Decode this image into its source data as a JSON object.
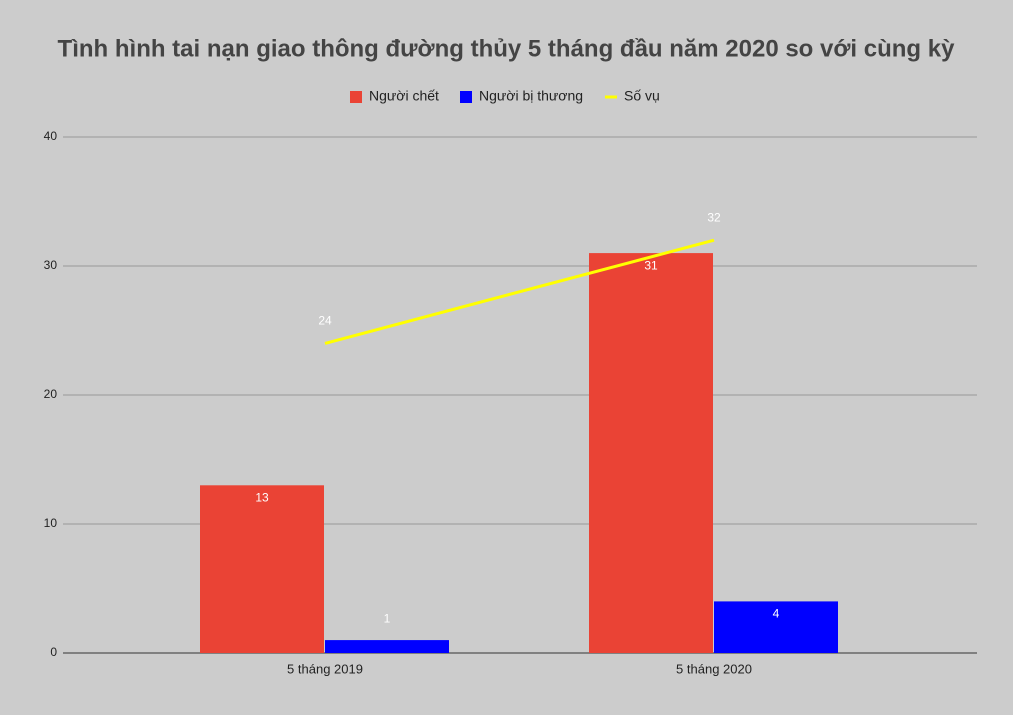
{
  "chart_data": {
    "type": "bar",
    "title": "Tình hình tai nạn giao thông đường thủy 5 tháng đầu năm 2020 so với cùng kỳ",
    "categories": [
      "5 tháng 2019",
      "5 tháng 2020"
    ],
    "series": [
      {
        "name": "Người chết",
        "color": "#ea4335",
        "type": "bar",
        "values": [
          13,
          31
        ]
      },
      {
        "name": "Người bị thương",
        "color": "#0000ff",
        "type": "bar",
        "values": [
          1,
          4
        ]
      },
      {
        "name": "Số vụ",
        "color": "#ffff00",
        "type": "line",
        "values": [
          24,
          32
        ]
      }
    ],
    "ylim": [
      0,
      40
    ],
    "yticks": [
      0,
      10,
      20,
      30,
      40
    ],
    "grid": true,
    "legend": "top"
  }
}
